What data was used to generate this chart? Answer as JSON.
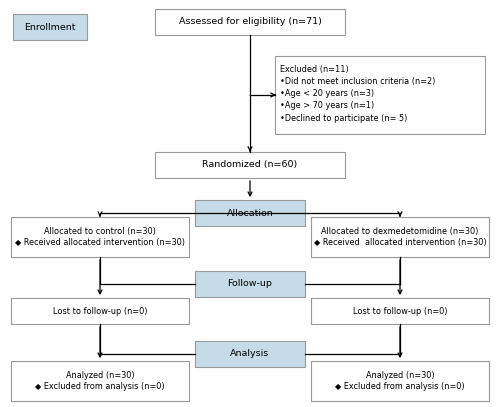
{
  "figsize": [
    5.0,
    4.07
  ],
  "dpi": 100,
  "bg_color": "#ffffff",
  "ec": "#999999",
  "lw": 0.8,
  "blue_fill": "#c5dce8",
  "white_fill": "#ffffff",
  "fs_main": 6.8,
  "fs_small": 5.9,
  "arrow_lw": 0.9,
  "arrow_ms": 7,
  "enrollment_text": "Enrollment",
  "eligibility_text": "Assessed for eligibility (n=71)",
  "excluded_text": "Excluded (n=11)\n•Did not meet inclusion criteria (n=2)\n•Age < 20 years (n=3)\n•Age > 70 years (n=1)\n•Declined to participate (n= 5)",
  "randomized_text": "Randomized (n=60)",
  "allocation_text": "Allocation",
  "alloc_ctrl_text": "Allocated to control (n=30)\n◆ Received allocated intervention (n=30)",
  "alloc_dex_text": "Allocated to dexmedetomidine (n=30)\n◆ Received  allocated intervention (n=30)",
  "followup_text": "Follow-up",
  "lost_ctrl_text": "Lost to follow-up (n=0)",
  "lost_dex_text": "Lost to follow-up (n=0)",
  "analysis_text": "Analysis",
  "analyzed_ctrl_text": "Analyzed (n=30)\n◆ Excluded from analysis (n=0)",
  "analyzed_dex_text": "Analyzed (n=30)\n◆ Excluded from analysis (n=0)"
}
